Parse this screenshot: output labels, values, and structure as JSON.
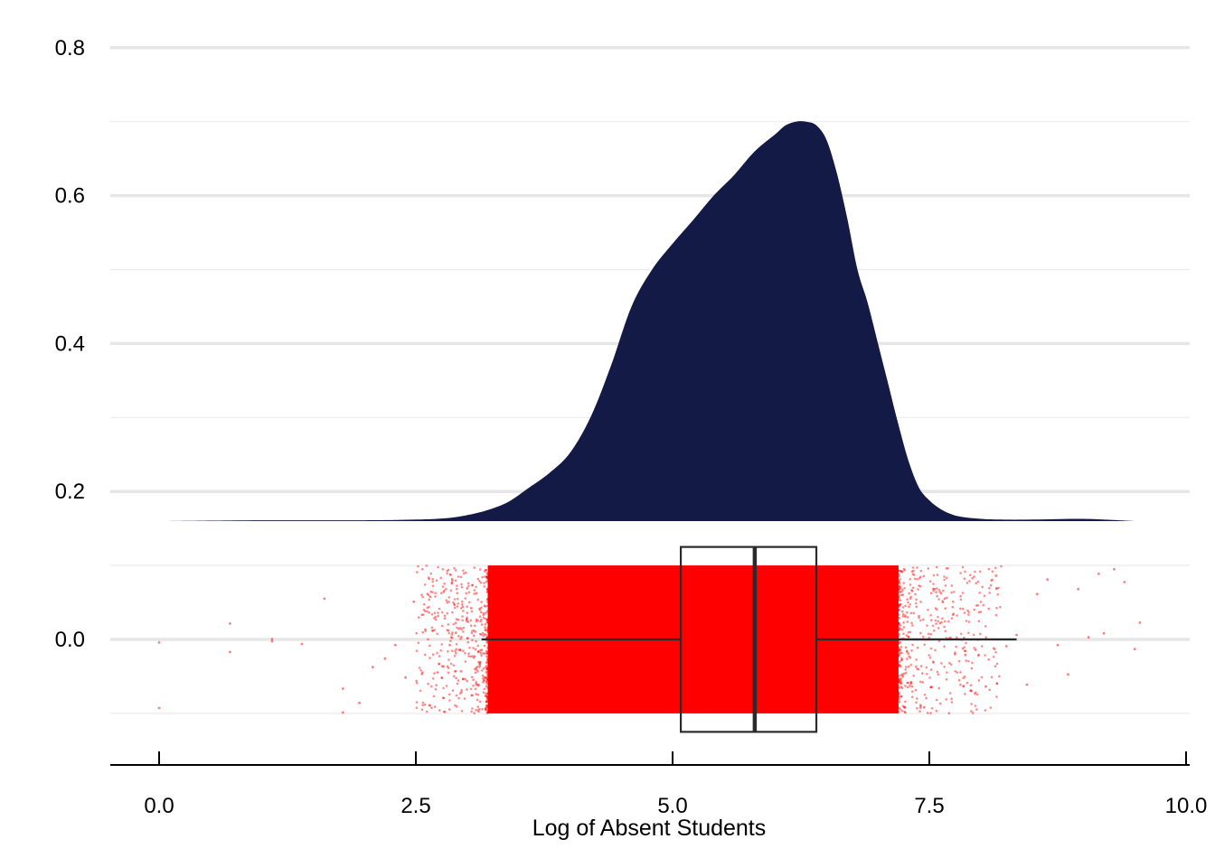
{
  "chart_data": {
    "type": "area",
    "title": "",
    "xlabel": "Log of Absent Students",
    "ylabel": "",
    "xlim": [
      -0.5,
      10.0
    ],
    "ylim": [
      -0.17,
      0.84
    ],
    "x_ticks": [
      "0.0",
      "2.5",
      "5.0",
      "7.5",
      "10.0"
    ],
    "y_ticks": [
      "0.0",
      "0.2",
      "0.4",
      "0.6",
      "0.8"
    ],
    "grid": "horizontal",
    "legend": "none",
    "density": {
      "fill": "#131a45",
      "baseline": 0.16,
      "x": [
        0.0,
        1.0,
        2.0,
        2.5,
        2.8,
        3.0,
        3.2,
        3.4,
        3.6,
        3.8,
        4.0,
        4.2,
        4.4,
        4.6,
        4.8,
        5.0,
        5.2,
        5.4,
        5.6,
        5.8,
        6.0,
        6.1,
        6.2,
        6.3,
        6.4,
        6.5,
        6.6,
        6.7,
        6.8,
        6.9,
        7.0,
        7.1,
        7.2,
        7.3,
        7.4,
        7.5,
        7.6,
        7.7,
        7.8,
        8.0,
        8.2,
        8.5,
        9.0,
        9.5
      ],
      "y": [
        0.16,
        0.161,
        0.161,
        0.162,
        0.164,
        0.168,
        0.175,
        0.186,
        0.205,
        0.225,
        0.252,
        0.3,
        0.37,
        0.45,
        0.5,
        0.535,
        0.567,
        0.6,
        0.628,
        0.66,
        0.683,
        0.695,
        0.7,
        0.7,
        0.695,
        0.675,
        0.63,
        0.57,
        0.5,
        0.455,
        0.4,
        0.345,
        0.29,
        0.24,
        0.205,
        0.188,
        0.177,
        0.17,
        0.166,
        0.163,
        0.162,
        0.162,
        0.163,
        0.16
      ]
    },
    "jitter": {
      "color": "#ff0000",
      "y_range": [
        -0.1,
        0.1
      ],
      "dense_range": [
        3.2,
        7.2
      ],
      "sparse_points_x": [
        0.0,
        0.0,
        0.69,
        0.69,
        1.1,
        1.1,
        1.39,
        1.61,
        1.79,
        1.79,
        1.95,
        2.08,
        2.2,
        2.3,
        2.4,
        2.48,
        2.56,
        2.64,
        2.71,
        2.77,
        2.83,
        2.89,
        2.94,
        3.0,
        3.04,
        3.09,
        3.14,
        7.45,
        7.55,
        7.65,
        7.75,
        7.85,
        7.95,
        8.05,
        8.15,
        8.25,
        8.35,
        8.45,
        8.55,
        8.65,
        8.75,
        8.85,
        8.95,
        9.05,
        9.15,
        9.2,
        9.3,
        9.4,
        9.5,
        9.55
      ]
    },
    "boxplot": {
      "min": 3.14,
      "q1": 5.08,
      "median": 5.8,
      "q3": 6.4,
      "max": 8.35,
      "y_center": 0.0,
      "half_height": 0.125,
      "stroke": "#2b2b2b"
    }
  }
}
